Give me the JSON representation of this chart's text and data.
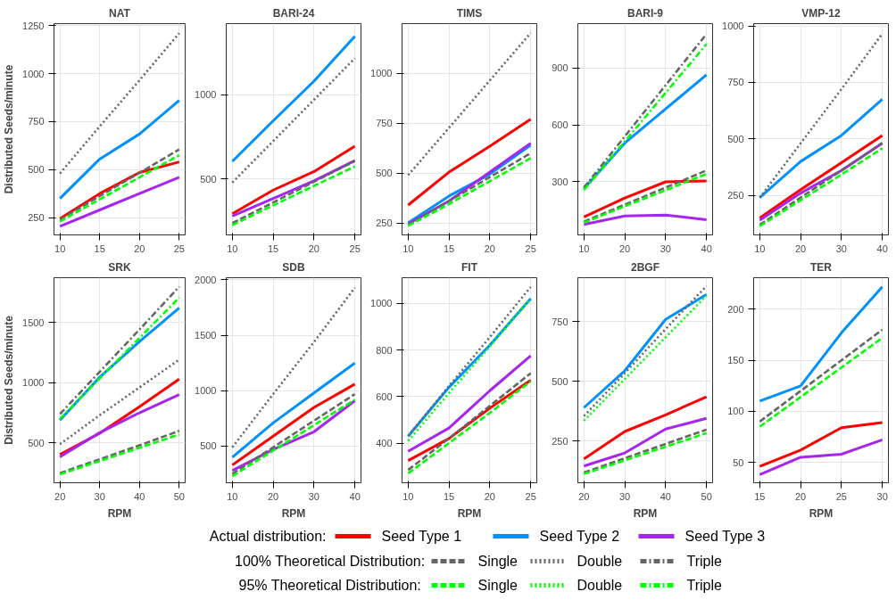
{
  "chart_data": [
    {
      "type": "line",
      "title": "NAT",
      "ylabel": "Distributed Seeds/minute",
      "x": [
        10,
        15,
        20,
        25
      ],
      "xlim": [
        9.25,
        25.75
      ],
      "xticks": [
        10,
        15,
        20,
        25
      ],
      "ylim": [
        160,
        1260
      ],
      "yticks": [
        250,
        500,
        750,
        1000,
        1250
      ],
      "grid": true,
      "legend": "bottom",
      "series": [
        {
          "name": "Seed Type 1",
          "color": "#ff0000",
          "line_style": "solid",
          "values": [
            245,
            375,
            485,
            540
          ]
        },
        {
          "name": "Seed Type 2",
          "color": "#0091ff",
          "line_style": "solid",
          "values": [
            350,
            555,
            685,
            860
          ]
        },
        {
          "name": "Seed Type 3",
          "color": "#a626f0",
          "line_style": "solid",
          "values": [
            205,
            290,
            375,
            460
          ]
        },
        {
          "name": "Single",
          "color": "#666666",
          "line_style": "dashed",
          "values": [
            240,
            362,
            483,
            605
          ]
        },
        {
          "name": "Double",
          "color": "#666666",
          "line_style": "dotted",
          "values": [
            480,
            725,
            965,
            1210
          ]
        },
        {
          "name": "Triple",
          "color": "#666666",
          "line_style": "dashdot",
          "values": [
            null,
            null,
            null,
            null
          ]
        },
        {
          "name": "Single",
          "color": "#00ff00",
          "line_style": "dashed",
          "values": [
            230,
            345,
            460,
            575
          ]
        },
        {
          "name": "Double",
          "color": "#00ff00",
          "line_style": "dotted",
          "values": [
            null,
            null,
            null,
            null
          ]
        },
        {
          "name": "Triple",
          "color": "#00ff00",
          "line_style": "dashdot",
          "values": [
            null,
            null,
            null,
            null
          ]
        }
      ]
    },
    {
      "type": "line",
      "title": "BARI-24",
      "x": [
        10,
        15,
        20,
        25
      ],
      "xlim": [
        9.25,
        25.75
      ],
      "xticks": [
        10,
        15,
        20,
        25
      ],
      "ylim": [
        170,
        1420
      ],
      "yticks": [
        500,
        1000
      ],
      "grid": true,
      "series": [
        {
          "color": "#ff0000",
          "line_style": "solid",
          "values": [
            295,
            435,
            545,
            695
          ]
        },
        {
          "color": "#0091ff",
          "line_style": "solid",
          "values": [
            605,
            845,
            1080,
            1345
          ]
        },
        {
          "color": "#a626f0",
          "line_style": "solid",
          "values": [
            282,
            385,
            490,
            610
          ]
        },
        {
          "color": "#666666",
          "line_style": "dashed",
          "values": [
            240,
            362,
            485,
            607
          ]
        },
        {
          "color": "#666666",
          "line_style": "dotted",
          "values": [
            480,
            725,
            970,
            1215
          ]
        },
        {
          "color": "#00ff00",
          "line_style": "dashed",
          "values": [
            228,
            345,
            460,
            575
          ]
        }
      ]
    },
    {
      "type": "line",
      "title": "TIMS",
      "x": [
        10,
        15,
        20,
        25
      ],
      "xlim": [
        9.25,
        25.75
      ],
      "xticks": [
        10,
        15,
        20,
        25
      ],
      "ylim": [
        190,
        1250
      ],
      "yticks": [
        250,
        500,
        750,
        1000
      ],
      "grid": true,
      "series": [
        {
          "color": "#ff0000",
          "line_style": "solid",
          "values": [
            340,
            505,
            635,
            770
          ]
        },
        {
          "color": "#0091ff",
          "line_style": "solid",
          "values": [
            250,
            385,
            495,
            640
          ]
        },
        {
          "color": "#a626f0",
          "line_style": "solid",
          "values": [
            245,
            360,
            505,
            650
          ]
        },
        {
          "color": "#666666",
          "line_style": "dashed",
          "values": [
            240,
            360,
            480,
            600
          ]
        },
        {
          "color": "#666666",
          "line_style": "dotted",
          "values": [
            490,
            727,
            965,
            1203
          ]
        },
        {
          "color": "#00ff00",
          "line_style": "dashed",
          "values": [
            235,
            345,
            460,
            575
          ]
        }
      ]
    },
    {
      "type": "line",
      "title": "BARI-9",
      "x": [
        10,
        20,
        30,
        40
      ],
      "xlim": [
        8.5,
        41.5
      ],
      "xticks": [
        10,
        20,
        30,
        40
      ],
      "ylim": [
        20,
        1135
      ],
      "yticks": [
        300,
        600,
        900
      ],
      "grid": true,
      "series": [
        {
          "color": "#ff0000",
          "line_style": "solid",
          "values": [
            115,
            215,
            300,
            305
          ]
        },
        {
          "color": "#0091ff",
          "line_style": "solid",
          "values": [
            265,
            505,
            685,
            865
          ]
        },
        {
          "color": "#a626f0",
          "line_style": "solid",
          "values": [
            75,
            120,
            125,
            100
          ]
        },
        {
          "color": "#666666",
          "line_style": "dashed",
          "values": [
            90,
            180,
            270,
            360
          ]
        },
        {
          "color": "#666666",
          "line_style": "dashdot",
          "values": [
            270,
            540,
            810,
            1080
          ]
        },
        {
          "color": "#00ff00",
          "line_style": "dashed",
          "values": [
            85,
            171,
            256,
            342
          ]
        },
        {
          "color": "#00ff00",
          "line_style": "dashdot",
          "values": [
            257,
            513,
            770,
            1027
          ]
        }
      ]
    },
    {
      "type": "line",
      "title": "VMP-12",
      "x": [
        10,
        20,
        30,
        40
      ],
      "xlim": [
        8.5,
        41.5
      ],
      "xticks": [
        10,
        20,
        30,
        40
      ],
      "ylim": [
        75,
        1010
      ],
      "yticks": [
        250,
        500,
        750,
        1000
      ],
      "grid": true,
      "series": [
        {
          "color": "#ff0000",
          "line_style": "solid",
          "values": [
            150,
            275,
            395,
            515
          ]
        },
        {
          "color": "#0091ff",
          "line_style": "solid",
          "values": [
            240,
            400,
            515,
            675
          ]
        },
        {
          "color": "#a626f0",
          "line_style": "solid",
          "values": [
            140,
            260,
            360,
            480
          ]
        },
        {
          "color": "#666666",
          "line_style": "dashed",
          "values": [
            120,
            240,
            360,
            482
          ]
        },
        {
          "color": "#666666",
          "line_style": "dotted",
          "values": [
            240,
            480,
            720,
            965
          ]
        },
        {
          "color": "#00ff00",
          "line_style": "dashed",
          "values": [
            114,
            228,
            342,
            458
          ]
        }
      ]
    },
    {
      "type": "line",
      "title": "SRK",
      "xlabel": "RPM",
      "ylabel": "Distributed Seeds/minute",
      "x": [
        20,
        30,
        40,
        50
      ],
      "xlim": [
        18.5,
        51.5
      ],
      "xticks": [
        20,
        30,
        40,
        50
      ],
      "ylim": [
        170,
        1870
      ],
      "yticks": [
        500,
        1000,
        1500
      ],
      "grid": true,
      "series": [
        {
          "color": "#ff0000",
          "line_style": "solid",
          "values": [
            405,
            580,
            800,
            1030
          ]
        },
        {
          "color": "#0091ff",
          "line_style": "solid",
          "values": [
            690,
            1045,
            1340,
            1620
          ]
        },
        {
          "color": "#a626f0",
          "line_style": "solid",
          "values": [
            385,
            585,
            750,
            900
          ]
        },
        {
          "color": "#666666",
          "line_style": "dashed",
          "values": [
            250,
            365,
            480,
            600
          ]
        },
        {
          "color": "#666666",
          "line_style": "dotted",
          "values": [
            490,
            730,
            960,
            1190
          ]
        },
        {
          "color": "#666666",
          "line_style": "dashdot",
          "values": [
            740,
            1090,
            1440,
            1795
          ]
        },
        {
          "color": "#00ff00",
          "line_style": "dashed",
          "values": [
            240,
            350,
            460,
            570
          ]
        },
        {
          "color": "#00ff00",
          "line_style": "dashdot",
          "values": [
            700,
            1035,
            1370,
            1705
          ]
        }
      ]
    },
    {
      "type": "line",
      "title": "SDB",
      "xlabel": "RPM",
      "x": [
        10,
        20,
        30,
        40
      ],
      "xlim": [
        8.5,
        41.5
      ],
      "xticks": [
        10,
        20,
        30,
        40
      ],
      "ylim": [
        170,
        2020
      ],
      "yticks": [
        500,
        1000,
        1500,
        2000
      ],
      "grid": true,
      "series": [
        {
          "color": "#ff0000",
          "line_style": "solid",
          "values": [
            330,
            590,
            850,
            1060
          ]
        },
        {
          "color": "#0091ff",
          "line_style": "solid",
          "values": [
            400,
            710,
            980,
            1250
          ]
        },
        {
          "color": "#a626f0",
          "line_style": "solid",
          "values": [
            280,
            470,
            630,
            910
          ]
        },
        {
          "color": "#666666",
          "line_style": "dashed",
          "values": [
            250,
            490,
            730,
            970
          ]
        },
        {
          "color": "#666666",
          "line_style": "dotted",
          "values": [
            490,
            970,
            1440,
            1930
          ]
        },
        {
          "color": "#00ff00",
          "line_style": "dashed",
          "values": [
            230,
            460,
            690,
            920
          ]
        }
      ]
    },
    {
      "type": "line",
      "title": "FIT",
      "xlabel": "RPM",
      "x": [
        10,
        15,
        20,
        25
      ],
      "xlim": [
        9.25,
        25.75
      ],
      "xticks": [
        10,
        15,
        20,
        25
      ],
      "ylim": [
        230,
        1110
      ],
      "yticks": [
        400,
        600,
        800,
        1000
      ],
      "grid": true,
      "series": [
        {
          "color": "#ff0000",
          "line_style": "solid",
          "values": [
            325,
            420,
            550,
            670
          ]
        },
        {
          "color": "#0091ff",
          "line_style": "solid",
          "values": [
            430,
            640,
            820,
            1020
          ]
        },
        {
          "color": "#a626f0",
          "line_style": "solid",
          "values": [
            365,
            465,
            625,
            775
          ]
        },
        {
          "color": "#666666",
          "line_style": "dashed",
          "values": [
            285,
            420,
            560,
            700
          ]
        },
        {
          "color": "#666666",
          "line_style": "dotted",
          "values": [
            430,
            645,
            855,
            1070
          ]
        },
        {
          "color": "#00ff00",
          "line_style": "dashed",
          "values": [
            270,
            400,
            530,
            665
          ]
        },
        {
          "color": "#00ff00",
          "line_style": "dotted",
          "values": [
            410,
            615,
            815,
            1020
          ]
        }
      ]
    },
    {
      "type": "line",
      "title": "2BGF",
      "xlabel": "RPM",
      "x": [
        20,
        30,
        40,
        50
      ],
      "xlim": [
        18.5,
        51.5
      ],
      "xticks": [
        20,
        30,
        40,
        50
      ],
      "ylim": [
        75,
        935
      ],
      "yticks": [
        250,
        500,
        750
      ],
      "grid": true,
      "series": [
        {
          "color": "#ff0000",
          "line_style": "solid",
          "values": [
            175,
            290,
            360,
            435
          ]
        },
        {
          "color": "#0091ff",
          "line_style": "solid",
          "values": [
            390,
            545,
            760,
            865
          ]
        },
        {
          "color": "#a626f0",
          "line_style": "solid",
          "values": [
            145,
            200,
            300,
            345
          ]
        },
        {
          "color": "#666666",
          "line_style": "dashed",
          "values": [
            118,
            178,
            238,
            298
          ]
        },
        {
          "color": "#666666",
          "line_style": "dotted",
          "values": [
            355,
            535,
            720,
            900
          ]
        },
        {
          "color": "#00ff00",
          "line_style": "dashed",
          "values": [
            112,
            169,
            226,
            283
          ]
        },
        {
          "color": "#00ff00",
          "line_style": "dotted",
          "values": [
            335,
            510,
            685,
            860
          ]
        }
      ]
    },
    {
      "type": "line",
      "title": "TER",
      "xlabel": "RPM",
      "x": [
        15,
        20,
        25,
        30
      ],
      "xlim": [
        14.25,
        30.75
      ],
      "xticks": [
        15,
        20,
        25,
        30
      ],
      "ylim": [
        30,
        231
      ],
      "yticks": [
        50,
        100,
        150,
        200
      ],
      "grid": true,
      "series": [
        {
          "color": "#ff0000",
          "line_style": "solid",
          "values": [
            46,
            62,
            84,
            89
          ]
        },
        {
          "color": "#0091ff",
          "line_style": "solid",
          "values": [
            110,
            125,
            177,
            222
          ]
        },
        {
          "color": "#a626f0",
          "line_style": "solid",
          "values": [
            38,
            55,
            58,
            72
          ]
        },
        {
          "color": "#666666",
          "line_style": "dashed",
          "values": [
            90,
            120,
            150,
            180
          ]
        },
        {
          "color": "#00ff00",
          "line_style": "dashed",
          "values": [
            85,
            114,
            143,
            172
          ]
        }
      ]
    },
    {
      "type": "other",
      "annotations": [
        "Actual distribution:",
        "100% Theoretical Distribution:",
        "95%  Theoretical Distribution:"
      ]
    }
  ]
}
